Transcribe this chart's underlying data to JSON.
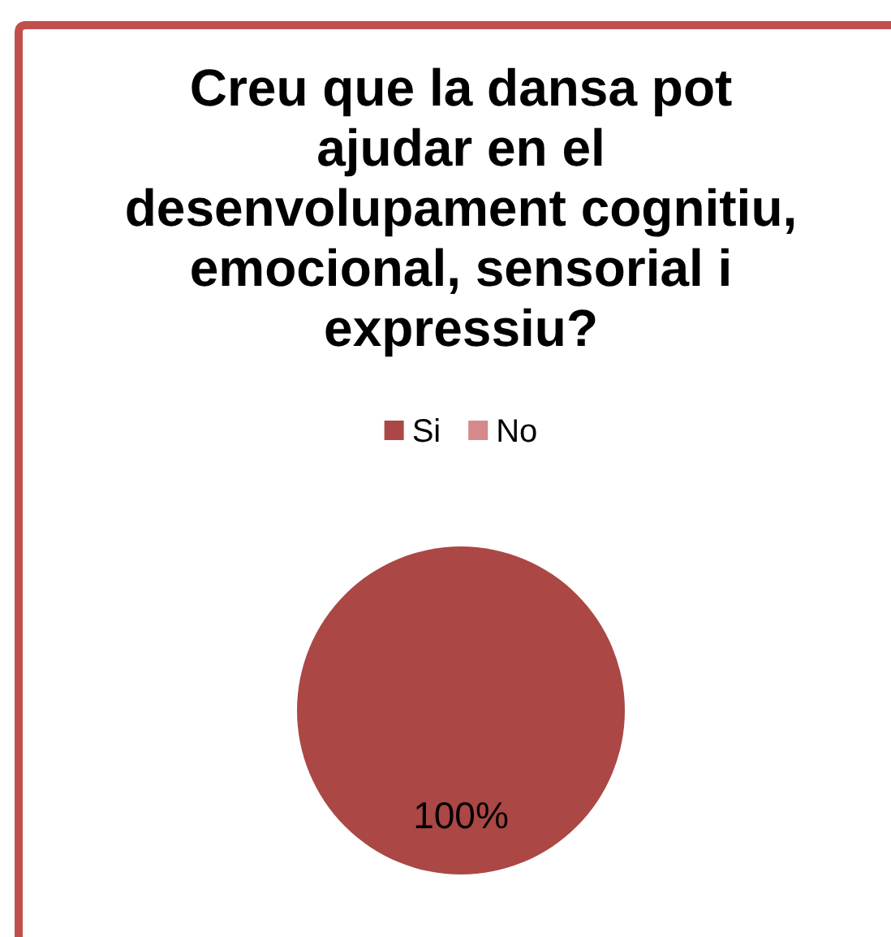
{
  "chart_data": {
    "type": "pie",
    "title": "Creu que la dansa pot ajudar en el desenvolupament cognitiu, emocional, sensorial i expressiu?",
    "categories": [
      "Si",
      "No"
    ],
    "values": [
      100,
      0
    ],
    "colors": [
      "#ab4744",
      "#d4898a"
    ],
    "value_labels": [
      "100%",
      null
    ],
    "legend": "top"
  }
}
